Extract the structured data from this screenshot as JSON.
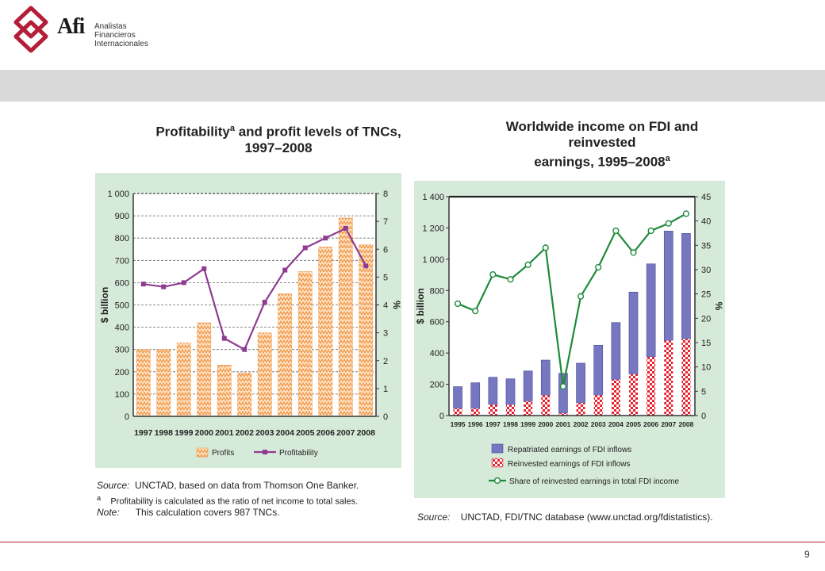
{
  "brand": {
    "name": "Afi",
    "sub_lines": [
      "Analistas",
      "Financieros",
      "Internacionales"
    ],
    "accent_color": "#b41e37",
    "logo_icon": "afi-knot-logo-icon"
  },
  "page_number": "9",
  "left_chart": {
    "title_main": "Profitability",
    "title_sup": "a",
    "title_rest": " and profit levels of TNCs,",
    "title_line2": "1997–2008",
    "source_label": "Source:",
    "source_text": "UNCTAD, based on data from Thomson One Banker.",
    "footnote_mark": "a",
    "footnote_text": "Profitability is calculated as the ratio of net income to total sales.",
    "note_label": "Note:",
    "note_text": "This calculation covers 987 TNCs."
  },
  "right_chart": {
    "title_line1": "Worldwide income on FDI and reinvested",
    "title_line2": "earnings, 1995–2008",
    "title_sup": "a",
    "source_label": "Source:",
    "source_text": "UNCTAD, FDI/TNC database (www.unctad.org/fdistatistics)."
  },
  "chart_data": [
    {
      "type": "bar",
      "combo": "bar+line",
      "categories": [
        "1997",
        "1998",
        "1999",
        "2000",
        "2001",
        "2002",
        "2003",
        "2004",
        "2005",
        "2006",
        "2007",
        "2008"
      ],
      "series": [
        {
          "name": "Profits",
          "type": "bar",
          "axis": "left",
          "color": "#f2a65a",
          "values": [
            300,
            300,
            330,
            420,
            230,
            195,
            375,
            550,
            650,
            760,
            890,
            770
          ]
        },
        {
          "name": "Profitability",
          "type": "line",
          "axis": "right",
          "color": "#8e3b91",
          "values": [
            4.75,
            4.65,
            4.8,
            5.3,
            2.8,
            2.4,
            4.1,
            5.25,
            6.05,
            6.4,
            6.75,
            5.4
          ]
        }
      ],
      "ylabel": "$ billion",
      "y2label": "%",
      "ylim": [
        0,
        1000
      ],
      "y2lim": [
        0,
        8
      ],
      "yticks": [
        "0",
        "100",
        "200",
        "300",
        "400",
        "500",
        "600",
        "700",
        "800",
        "900",
        "1 000"
      ],
      "y2ticks": [
        "0",
        "1",
        "2",
        "3",
        "4",
        "5",
        "6",
        "7",
        "8"
      ],
      "grid": "dashed horizontal",
      "legend": "bottom"
    },
    {
      "type": "bar",
      "combo": "stacked bar+line",
      "categories": [
        "1995",
        "1996",
        "1997",
        "1998",
        "1999",
        "2000",
        "2001",
        "2002",
        "2003",
        "2004",
        "2005",
        "2006",
        "2007",
        "2008"
      ],
      "series": [
        {
          "name": "Reinvested earnings of FDI inflows",
          "type": "bar",
          "stack": "total",
          "axis": "left",
          "color": "#e8212e",
          "values": [
            45,
            45,
            70,
            70,
            90,
            130,
            15,
            80,
            130,
            230,
            265,
            375,
            480,
            490
          ]
        },
        {
          "name": "Repatriated earnings of FDI inflows",
          "type": "bar",
          "stack": "total",
          "axis": "left",
          "color": "#7677c0",
          "values": [
            140,
            165,
            175,
            165,
            195,
            225,
            255,
            255,
            320,
            365,
            525,
            595,
            700,
            675
          ]
        },
        {
          "name": "Share of reinvested earnings in total FDI income",
          "type": "line",
          "axis": "right",
          "color": "#1e8a3a",
          "values": [
            23,
            21.5,
            29,
            28,
            31,
            34.5,
            6,
            24.5,
            30.5,
            38,
            33.5,
            38,
            39.5,
            41.5
          ]
        }
      ],
      "ylabel": "$ billion",
      "y2label": "%",
      "ylim": [
        0,
        1400
      ],
      "y2lim": [
        0,
        45
      ],
      "yticks": [
        "0",
        "200",
        "400",
        "600",
        "800",
        "1 000",
        "1 200",
        "1 400"
      ],
      "y2ticks": [
        "0",
        "5",
        "10",
        "15",
        "20",
        "25",
        "30",
        "35",
        "40",
        "45"
      ],
      "grid": "none",
      "legend": "bottom"
    }
  ]
}
